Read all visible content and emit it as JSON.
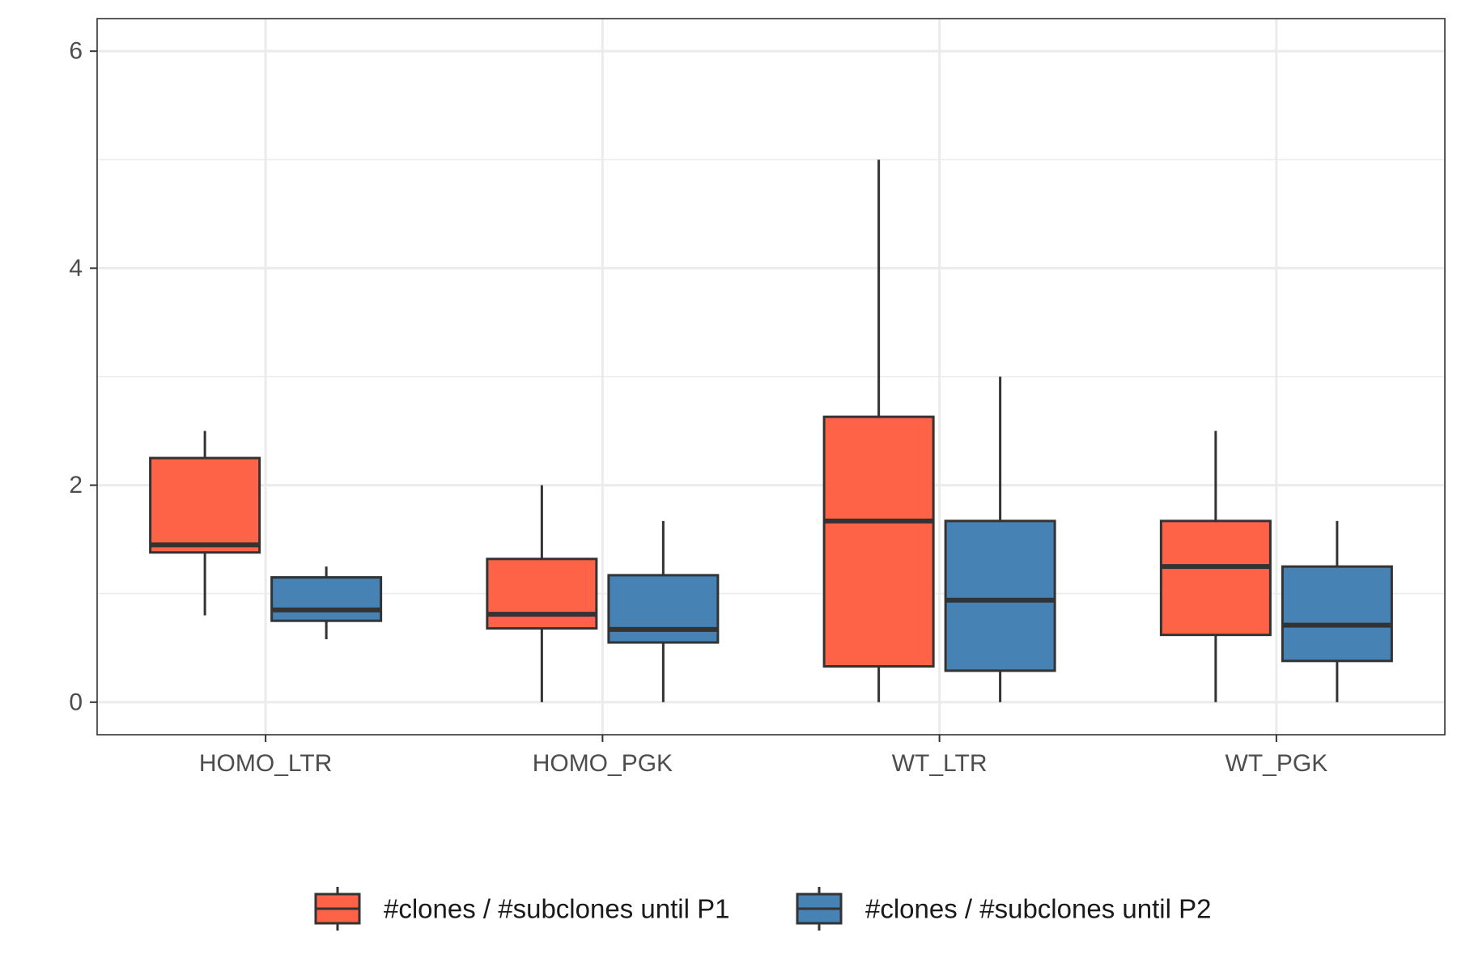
{
  "chart_data": {
    "type": "boxplot",
    "title": "",
    "xlabel": "",
    "ylabel": "",
    "categories": [
      "HOMO_LTR",
      "HOMO_PGK",
      "WT_LTR",
      "WT_PGK"
    ],
    "y_ticks": [
      0,
      2,
      4,
      6
    ],
    "ylim": [
      -0.3,
      6.3
    ],
    "grid": true,
    "legend_position": "bottom",
    "series": [
      {
        "name": "#clones / #subclones until P1",
        "color": "#FF6347",
        "boxes": [
          {
            "min": 0.8,
            "q1": 1.38,
            "median": 1.45,
            "q3": 2.25,
            "max": 2.5
          },
          {
            "min": 0.0,
            "q1": 0.68,
            "median": 0.81,
            "q3": 1.32,
            "max": 2.0
          },
          {
            "min": 0.0,
            "q1": 0.33,
            "median": 1.67,
            "q3": 2.63,
            "max": 5.0
          },
          {
            "min": 0.0,
            "q1": 0.62,
            "median": 1.25,
            "q3": 1.67,
            "max": 2.5
          }
        ]
      },
      {
        "name": "#clones / #subclones until P2",
        "color": "#4682B4",
        "boxes": [
          {
            "min": 0.58,
            "q1": 0.75,
            "median": 0.85,
            "q3": 1.15,
            "max": 1.25
          },
          {
            "min": 0.0,
            "q1": 0.55,
            "median": 0.67,
            "q3": 1.17,
            "max": 1.67
          },
          {
            "min": 0.0,
            "q1": 0.29,
            "median": 0.94,
            "q3": 1.67,
            "max": 3.0
          },
          {
            "min": 0.0,
            "q1": 0.38,
            "median": 0.71,
            "q3": 1.25,
            "max": 1.67
          }
        ]
      }
    ]
  }
}
